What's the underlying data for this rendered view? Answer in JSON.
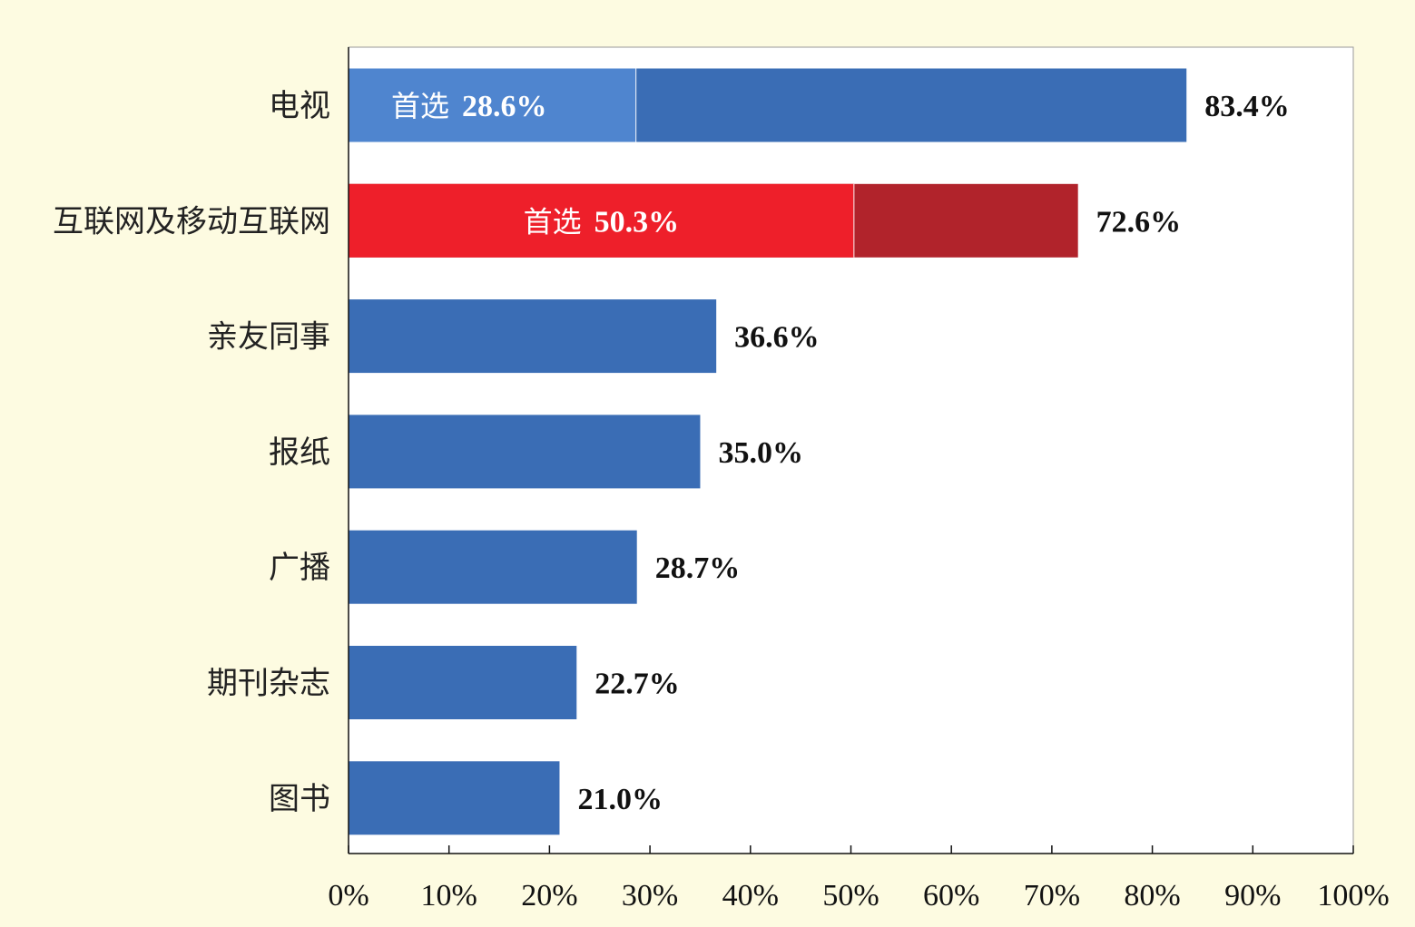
{
  "chart_data": {
    "type": "bar",
    "orientation": "horizontal",
    "categories": [
      "电视",
      "互联网及移动互联网",
      "亲友同事",
      "报纸",
      "广播",
      "期刊杂志",
      "图书"
    ],
    "values": [
      83.4,
      72.6,
      36.6,
      35.0,
      28.7,
      22.7,
      21.0
    ],
    "value_labels": [
      "83.4%",
      "72.6%",
      "36.6%",
      "35.0%",
      "28.7%",
      "22.7%",
      "21.0%"
    ],
    "first_choice": [
      {
        "category": "电视",
        "prefix": "首选",
        "value": 28.6,
        "label": "28.6%"
      },
      {
        "category": "互联网及移动互联网",
        "prefix": "首选",
        "value": 50.3,
        "label": "50.3%"
      }
    ],
    "xlim": [
      0,
      100
    ],
    "x_ticks": [
      0,
      10,
      20,
      30,
      40,
      50,
      60,
      70,
      80,
      90,
      100
    ],
    "x_tick_labels": [
      "0%",
      "10%",
      "20%",
      "30%",
      "40%",
      "50%",
      "60%",
      "70%",
      "80%",
      "90%",
      "100%"
    ],
    "grid": false,
    "colors": {
      "bar": "#3a6db5",
      "first_choice_tv": "#4f85cf",
      "internet_first": "#ee1f2a",
      "internet_rest": "#b1232b",
      "background": "#fdfbe1",
      "plot_background": "#ffffff"
    }
  }
}
